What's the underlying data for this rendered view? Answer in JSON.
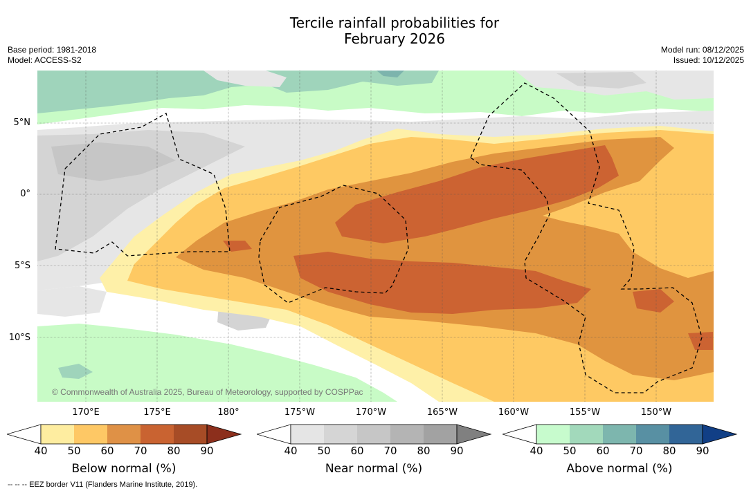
{
  "title": {
    "line1": "Tercile rainfall probabilities for",
    "line2": "February 2026"
  },
  "meta": {
    "base_period": "Base period: 1981-2018",
    "model": "Model: ACCESS-S2",
    "model_run": "Model run: 08/12/2025",
    "issued": "Issued: 10/12/2025"
  },
  "map": {
    "lat_labels": [
      "5°N",
      "0°",
      "5°S",
      "10°S"
    ],
    "lon_labels": [
      "170°E",
      "175°E",
      "180°",
      "175°W",
      "170°W",
      "165°W",
      "160°W",
      "155°W",
      "150°W"
    ],
    "copyright": "© Commonwealth of Australia 2025, Bureau of Meteorology, supported by COSPPac",
    "colors": {
      "ocean_white": "#ffffff",
      "below_40": "#fef0a8",
      "below_50": "#fec963",
      "below_60": "#e0943f",
      "below_70": "#cc6332",
      "near_40": "#e6e6e6",
      "near_50": "#d4d4d4",
      "near_60": "#c6c6c6",
      "above_40": "#c8fbc6",
      "above_50": "#9fd4bb",
      "above_60": "#7db4ad"
    }
  },
  "colorbars": [
    {
      "label": "Below normal (%)",
      "ticks": [
        "40",
        "50",
        "60",
        "70",
        "80",
        "90"
      ],
      "colors": [
        "#ffffff",
        "#feeda0",
        "#fec865",
        "#df9146",
        "#c96331",
        "#a74c26",
        "#8c2f1c"
      ]
    },
    {
      "label": "Near normal (%)",
      "ticks": [
        "40",
        "50",
        "60",
        "70",
        "80",
        "90"
      ],
      "colors": [
        "#ffffff",
        "#e5e5e5",
        "#d5d5d5",
        "#c6c6c6",
        "#b4b4b4",
        "#a2a2a2",
        "#808080"
      ]
    },
    {
      "label": "Above normal (%)",
      "ticks": [
        "40",
        "50",
        "60",
        "70",
        "80",
        "90"
      ],
      "colors": [
        "#ffffff",
        "#c7fbcd",
        "#a2d9bb",
        "#7db6ae",
        "#5890a3",
        "#316597",
        "#113f86"
      ]
    }
  ],
  "footnote": "--  --  -- EEZ border V11 (Flanders Marine Institute, 2019)."
}
